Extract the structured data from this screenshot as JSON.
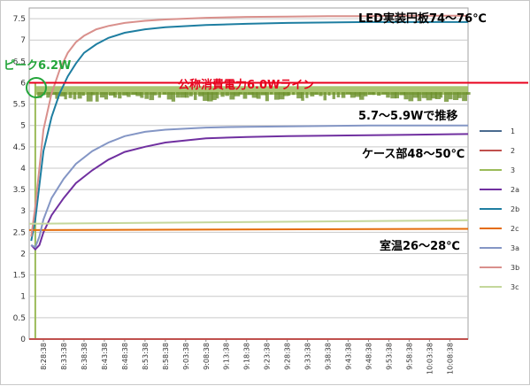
{
  "chart_data": {
    "type": "line",
    "title": "",
    "xlabel": "",
    "ylabel": "",
    "ylim": [
      0,
      7.75
    ],
    "y_ticks": [
      "0",
      "0.5",
      "1",
      "1.5",
      "2",
      "2.5",
      "3",
      "3.5",
      "4",
      "4.5",
      "5",
      "5.5",
      "6",
      "6.5",
      "7",
      "7.5"
    ],
    "x_ticks": [
      "8:28:38",
      "8:33:38",
      "8:38:38",
      "8:43:38",
      "8:48:38",
      "8:53:38",
      "8:58:38",
      "9:03:38",
      "9:08:38",
      "9:13:38",
      "9:18:38",
      "9:23:38",
      "9:28:38",
      "9:33:38",
      "9:38:38",
      "9:43:38",
      "9:48:38",
      "9:53:38",
      "9:58:38",
      "10:03:38",
      "10:08:38"
    ],
    "x_minutes_range": [
      -3.5,
      104.5
    ],
    "grid": true,
    "legend_position": "right",
    "series": [
      {
        "name": "1",
        "color": "#4a6b8f",
        "x": [
          -3.5,
          104.5
        ],
        "values": [
          0,
          0
        ]
      },
      {
        "name": "2",
        "color": "#c0504d",
        "x": [
          -3.5,
          104.5
        ],
        "values": [
          0,
          0
        ]
      },
      {
        "name": "3",
        "color": "#9bbb59",
        "x": [
          -3.5,
          -2.5,
          -2,
          0,
          10,
          30,
          60,
          104.5
        ],
        "values": [
          0,
          0,
          5.85,
          5.85,
          5.8,
          5.82,
          5.85,
          5.85
        ]
      },
      {
        "name": "2a",
        "color": "#7030a0",
        "x": [
          -3,
          -2,
          -1,
          0,
          2,
          5,
          8,
          12,
          16,
          20,
          25,
          30,
          40,
          50,
          60,
          70,
          80,
          90,
          104.5
        ],
        "values": [
          2.2,
          2.1,
          2.2,
          2.5,
          2.9,
          3.3,
          3.65,
          3.95,
          4.2,
          4.38,
          4.5,
          4.6,
          4.7,
          4.73,
          4.75,
          4.76,
          4.77,
          4.78,
          4.8
        ]
      },
      {
        "name": "2b",
        "color": "#1e7ea1",
        "x": [
          -3,
          -2,
          -1,
          0,
          2,
          4,
          6,
          8,
          10,
          13,
          16,
          20,
          25,
          30,
          40,
          50,
          60,
          70,
          80,
          90,
          104.5
        ],
        "values": [
          2.3,
          2.8,
          3.6,
          4.4,
          5.2,
          5.75,
          6.15,
          6.45,
          6.7,
          6.9,
          7.05,
          7.17,
          7.25,
          7.3,
          7.35,
          7.38,
          7.4,
          7.41,
          7.42,
          7.42,
          7.42
        ]
      },
      {
        "name": "2c",
        "color": "#e46c0a",
        "x": [
          -3.5,
          104.5
        ],
        "values": [
          2.55,
          2.58
        ]
      },
      {
        "name": "3a",
        "color": "#8496c5",
        "x": [
          -3,
          -2,
          -1,
          0,
          2,
          5,
          8,
          12,
          16,
          20,
          25,
          30,
          40,
          50,
          60,
          70,
          80,
          90,
          104.5
        ],
        "values": [
          2.2,
          2.15,
          2.4,
          2.8,
          3.3,
          3.75,
          4.1,
          4.4,
          4.6,
          4.75,
          4.85,
          4.9,
          4.95,
          4.97,
          4.98,
          4.99,
          5.0,
          5.0,
          5.0
        ]
      },
      {
        "name": "3b",
        "color": "#d9908c",
        "x": [
          -3,
          -2,
          -1,
          0,
          2,
          4,
          6,
          8,
          10,
          13,
          16,
          20,
          25,
          30,
          40,
          50,
          60,
          70,
          80,
          90,
          104.5
        ],
        "values": [
          2.4,
          3.1,
          4.0,
          4.9,
          5.75,
          6.3,
          6.7,
          6.95,
          7.1,
          7.25,
          7.33,
          7.4,
          7.45,
          7.48,
          7.52,
          7.54,
          7.55,
          7.56,
          7.56,
          7.57,
          7.57
        ]
      },
      {
        "name": "3c",
        "color": "#c4d79b",
        "x": [
          -3.5,
          104.5
        ],
        "values": [
          2.7,
          2.78
        ]
      }
    ],
    "reference_line": {
      "value": 6.0,
      "color": "#e8001c"
    },
    "annotations": [
      {
        "text": "LED実装円板74～76℃",
        "style": "black"
      },
      {
        "text": "ピーク6.2W",
        "style": "green"
      },
      {
        "text": "公称消費電力6.0Wライン",
        "style": "red"
      },
      {
        "text": "5.7～5.9Wで推移",
        "style": "black"
      },
      {
        "text": "ケース部48～50℃",
        "style": "black"
      },
      {
        "text": "室温26～28℃",
        "style": "black"
      }
    ]
  }
}
